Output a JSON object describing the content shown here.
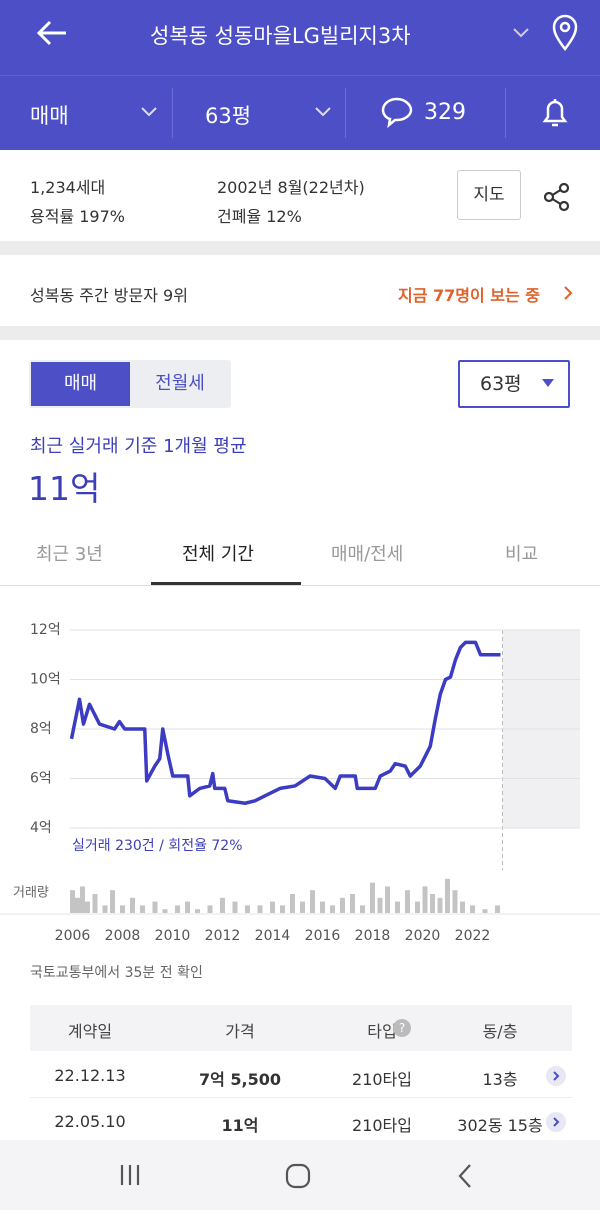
{
  "header": {
    "title": "성복동 성동마을LG빌리지3차",
    "deal_type": "매매",
    "size": "63평",
    "comments": "329"
  },
  "info": {
    "households": "1,234세대",
    "far": "용적률 197%",
    "built": "2002년 8월(22년차)",
    "bcr": "건폐율 12%",
    "map_button": "지도"
  },
  "visitors": {
    "rank": "성복동 주간 방문자 9위",
    "live": "지금 77명이 보는 중"
  },
  "price": {
    "toggle": [
      "매매",
      "전월세"
    ],
    "size": "63평",
    "caption": "최근 실거래 기준 1개월 평균",
    "value": "11억"
  },
  "tabs": [
    "최근 3년",
    "전체 기간",
    "매매/전세",
    "비교"
  ],
  "chart_data": {
    "type": "line",
    "color": "#3b3bc4",
    "x": [
      2005.96,
      2006.28,
      2006.44,
      2006.68,
      2006.88,
      2007.08,
      2007.68,
      2007.88,
      2008.09,
      2008.89,
      2008.97,
      2009.29,
      2009.49,
      2009.61,
      2009.81,
      2010.01,
      2010.61,
      2010.69,
      2011.09,
      2011.49,
      2011.61,
      2011.69,
      2012.09,
      2012.21,
      2012.9,
      2013.3,
      2013.7,
      2014.3,
      2014.9,
      2015.5,
      2016.1,
      2016.51,
      2016.71,
      2017.31,
      2017.39,
      2018.11,
      2018.31,
      2018.71,
      2018.91,
      2019.31,
      2019.51,
      2019.91,
      2020.31,
      2020.51,
      2020.71,
      2020.92,
      2021.12,
      2021.32,
      2021.52,
      2021.72,
      2022.12,
      2022.32,
      2023.12
    ],
    "values": [
      7.6,
      9.2,
      8.2,
      9.0,
      8.6,
      8.2,
      8.0,
      8.3,
      8.0,
      8.0,
      5.9,
      6.5,
      6.8,
      8.0,
      7.0,
      6.1,
      6.1,
      5.3,
      5.6,
      5.7,
      6.2,
      5.6,
      5.6,
      5.1,
      5.0,
      5.1,
      5.3,
      5.6,
      5.7,
      6.1,
      6.0,
      5.6,
      6.1,
      6.1,
      5.6,
      5.6,
      6.1,
      6.3,
      6.6,
      6.5,
      6.1,
      6.5,
      7.3,
      8.4,
      9.4,
      10.0,
      10.1,
      10.8,
      11.3,
      11.5,
      11.5,
      11.0,
      11.0
    ],
    "xlim": [
      2005.9,
      2026.3
    ],
    "ylim": [
      4,
      12
    ],
    "xticks": [
      2006,
      2008,
      2010,
      2012,
      2014,
      2016,
      2018,
      2020,
      2022
    ],
    "yticks": [
      {
        "value": 4,
        "label": "4억"
      },
      {
        "value": 6,
        "label": "6억"
      },
      {
        "value": 8,
        "label": "8억"
      },
      {
        "value": 10,
        "label": "10억"
      },
      {
        "value": 12,
        "label": "12억"
      }
    ],
    "grid": true,
    "shade_start": 2023.2,
    "summary": "실거래 230건 / 회전율 72%",
    "volume": {
      "label": "거래량",
      "color": "#c4c4c4",
      "ylim": [
        0,
        10
      ],
      "x": [
        2006.0,
        2006.2,
        2006.4,
        2006.6,
        2006.9,
        2007.3,
        2007.6,
        2008.0,
        2008.4,
        2008.8,
        2009.3,
        2009.7,
        2010.2,
        2010.6,
        2011.0,
        2011.5,
        2012.0,
        2012.5,
        2013.0,
        2013.5,
        2014.0,
        2014.4,
        2014.8,
        2015.2,
        2015.6,
        2016.0,
        2016.4,
        2016.8,
        2017.2,
        2017.6,
        2018.0,
        2018.3,
        2018.6,
        2019.0,
        2019.4,
        2019.8,
        2020.1,
        2020.4,
        2020.7,
        2021.0,
        2021.3,
        2021.6,
        2022.0,
        2022.5,
        2023.0
      ],
      "values": [
        6,
        4,
        7,
        3,
        5,
        2,
        6,
        2,
        4,
        2,
        3,
        1,
        2,
        3,
        1,
        2,
        4,
        3,
        2,
        2,
        3,
        2,
        5,
        3,
        6,
        3,
        2,
        4,
        5,
        2,
        8,
        4,
        7,
        3,
        6,
        3,
        7,
        5,
        4,
        9,
        6,
        3,
        2,
        1,
        2
      ]
    }
  },
  "source": "국토교통부에서 35분 전 확인",
  "table": {
    "header": [
      "계약일",
      "가격",
      "타입",
      "동/층"
    ],
    "rows": [
      [
        "22.12.13",
        "7억 5,500",
        "210타입",
        "13층"
      ],
      [
        "22.05.10",
        "11억",
        "210타입",
        "302동 15층"
      ]
    ]
  }
}
